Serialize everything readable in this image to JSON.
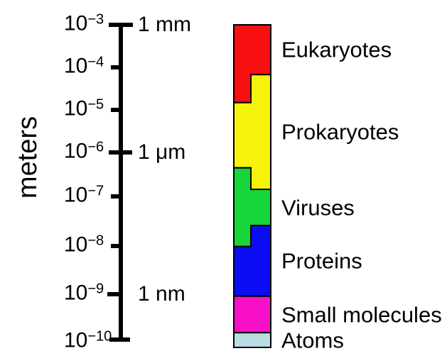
{
  "chart_data": {
    "type": "bar",
    "variant": "logarithmic-size-scale",
    "title": "",
    "ylabel": "meters",
    "y_scale": "log10",
    "y_axis_range_exponents": [
      -3,
      -10
    ],
    "axis_color": "#000000",
    "background": "#ffffff",
    "y_ticks": [
      {
        "base": "10",
        "sup": "−3",
        "exponent": -3,
        "unit": "1 mm",
        "tick_style": "top-cross"
      },
      {
        "base": "10",
        "sup": "−4",
        "exponent": -4,
        "unit": "",
        "tick_style": "left"
      },
      {
        "base": "10",
        "sup": "−5",
        "exponent": -5,
        "unit": "",
        "tick_style": "left"
      },
      {
        "base": "10",
        "sup": "−6",
        "exponent": -6,
        "unit": "1 μm",
        "tick_style": "cross"
      },
      {
        "base": "10",
        "sup": "−7",
        "exponent": -7,
        "unit": "",
        "tick_style": "left"
      },
      {
        "base": "10",
        "sup": "−8",
        "exponent": -8,
        "unit": "",
        "tick_style": "left"
      },
      {
        "base": "10",
        "sup": "−9",
        "exponent": -9,
        "unit": "1 nm",
        "tick_style": "left-long"
      },
      {
        "base": "10",
        "sup": "−10",
        "exponent": -10,
        "unit": "",
        "tick_style": "foot"
      }
    ],
    "series": [
      {
        "name": "Eukaryotes",
        "color": "#f6100f",
        "left_edge_exponents": [
          -3.0,
          -4.83
        ],
        "right_edge_exponents": [
          -3.0,
          -4.17
        ],
        "approx_size_range_m": [
          "1e-5",
          "1e-3"
        ]
      },
      {
        "name": "Prokaryotes",
        "color": "#f8f30a",
        "left_edge_exponents": [
          -4.83,
          -6.35
        ],
        "right_edge_exponents": [
          -4.17,
          -6.84
        ],
        "approx_size_range_m": [
          "1e-7",
          "1e-4"
        ]
      },
      {
        "name": "Viruses",
        "color": "#16d63a",
        "left_edge_exponents": [
          -6.35,
          -8.01
        ],
        "right_edge_exponents": [
          -6.84,
          -7.59
        ],
        "approx_size_range_m": [
          "1e-8",
          "4e-7"
        ]
      },
      {
        "name": "Proteins",
        "color": "#0b0cf4",
        "left_edge_exponents": [
          -8.01,
          -9.04
        ],
        "right_edge_exponents": [
          -7.59,
          -9.04
        ],
        "approx_size_range_m": [
          "1e-9",
          "3e-8"
        ]
      },
      {
        "name": "Small molecules",
        "color": "#f710c8",
        "left_edge_exponents": [
          -9.04,
          -9.81
        ],
        "right_edge_exponents": [
          -9.04,
          -9.81
        ],
        "approx_size_range_m": [
          "2e-10",
          "1e-9"
        ]
      },
      {
        "name": "Atoms",
        "color": "#b9dde3",
        "left_edge_exponents": [
          -9.81,
          -10.12
        ],
        "right_edge_exponents": [
          -9.81,
          -10.12
        ],
        "approx_size_range_m": [
          "8e-11",
          "2e-10"
        ]
      }
    ]
  }
}
